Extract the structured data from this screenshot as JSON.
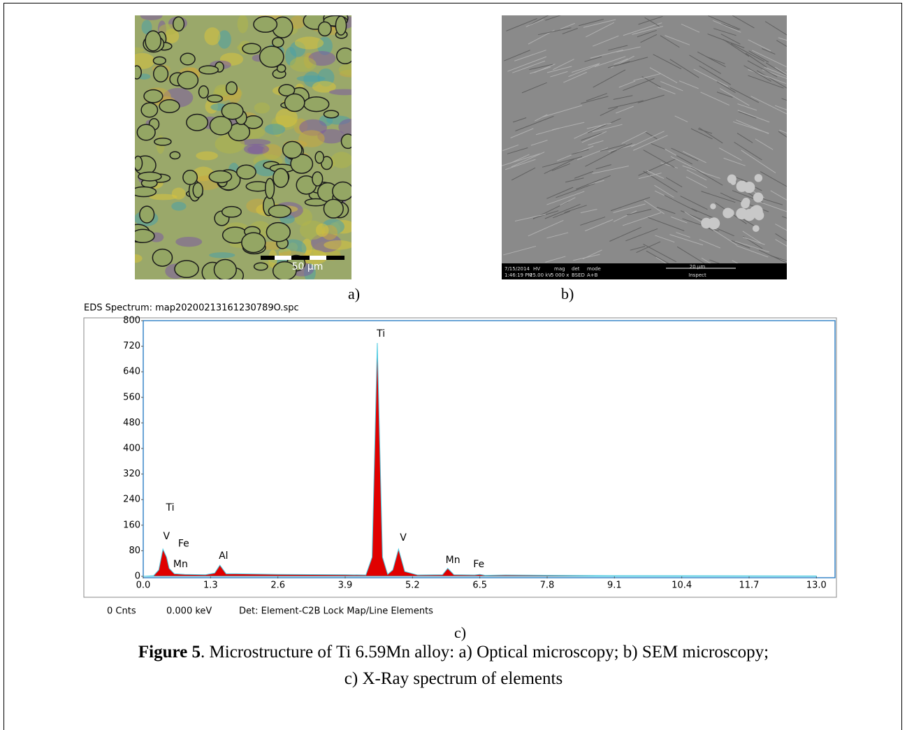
{
  "panels": [
    {
      "label": "a)",
      "scale_bar": "50 µm"
    },
    {
      "label": "b)",
      "info_bar": [
        "7/15/2014",
        "1:46:19 PM",
        "HV",
        "25.00 kV",
        "mag",
        "5 000 x",
        "det",
        "BSED",
        "mode",
        "A+B",
        "20 µm",
        "Inspect"
      ]
    }
  ],
  "chart_data": {
    "type": "area",
    "title": "EDS Spectrum: map20200213161230789O.spc",
    "x": [
      0.0,
      0.2,
      0.3,
      0.38,
      0.45,
      0.5,
      0.6,
      0.8,
      1.2,
      1.38,
      1.48,
      1.6,
      1.8,
      2.6,
      3.9,
      4.3,
      4.42,
      4.52,
      4.62,
      4.72,
      4.82,
      4.93,
      5.05,
      5.3,
      5.78,
      5.88,
      6.0,
      6.4,
      6.5,
      6.6,
      7.0,
      9.0,
      13.0
    ],
    "values": [
      0,
      2,
      20,
      85,
      60,
      25,
      8,
      6,
      5,
      10,
      35,
      8,
      8,
      6,
      5,
      4,
      60,
      730,
      60,
      6,
      20,
      85,
      15,
      4,
      5,
      25,
      5,
      4,
      6,
      3,
      4,
      2,
      1
    ],
    "color": "#e00000",
    "outline": "#49c9e0",
    "xlim": [
      0,
      13.36
    ],
    "ylim": [
      0,
      800
    ],
    "xticks": [
      {
        "value": 0,
        "label": "0.0"
      },
      1.3,
      2.6,
      3.9,
      5.2,
      6.5,
      7.8,
      9.1,
      10.4,
      11.7,
      {
        "value": 13,
        "label": "13.0"
      }
    ],
    "yticks": [
      0,
      80,
      160,
      240,
      320,
      400,
      480,
      560,
      640,
      720,
      800
    ],
    "annotations": [
      {
        "text": "Ti",
        "x": 0.52,
        "y": 214
      },
      {
        "text": "V",
        "x": 0.45,
        "y": 125
      },
      {
        "text": "Fe",
        "x": 0.78,
        "y": 102
      },
      {
        "text": "Mn",
        "x": 0.72,
        "y": 37
      },
      {
        "text": "Al",
        "x": 1.55,
        "y": 63
      },
      {
        "text": "Ti",
        "x": 4.59,
        "y": 758
      },
      {
        "text": "V",
        "x": 5.02,
        "y": 120
      },
      {
        "text": "Mn",
        "x": 5.98,
        "y": 50
      },
      {
        "text": "Fe",
        "x": 6.48,
        "y": 37
      }
    ],
    "status": [
      "0 Cnts",
      "0.000 keV",
      "Det: Element-C2B Lock Map/Line Elements"
    ],
    "panel_label": "c)"
  },
  "caption": {
    "bold": "Figure 5",
    "text": ". Microstructure of Ti 6.59Mn alloy: a) Optical microscopy; b) SEM microscopy;",
    "line2": "c) X-Ray spectrum of elements"
  }
}
